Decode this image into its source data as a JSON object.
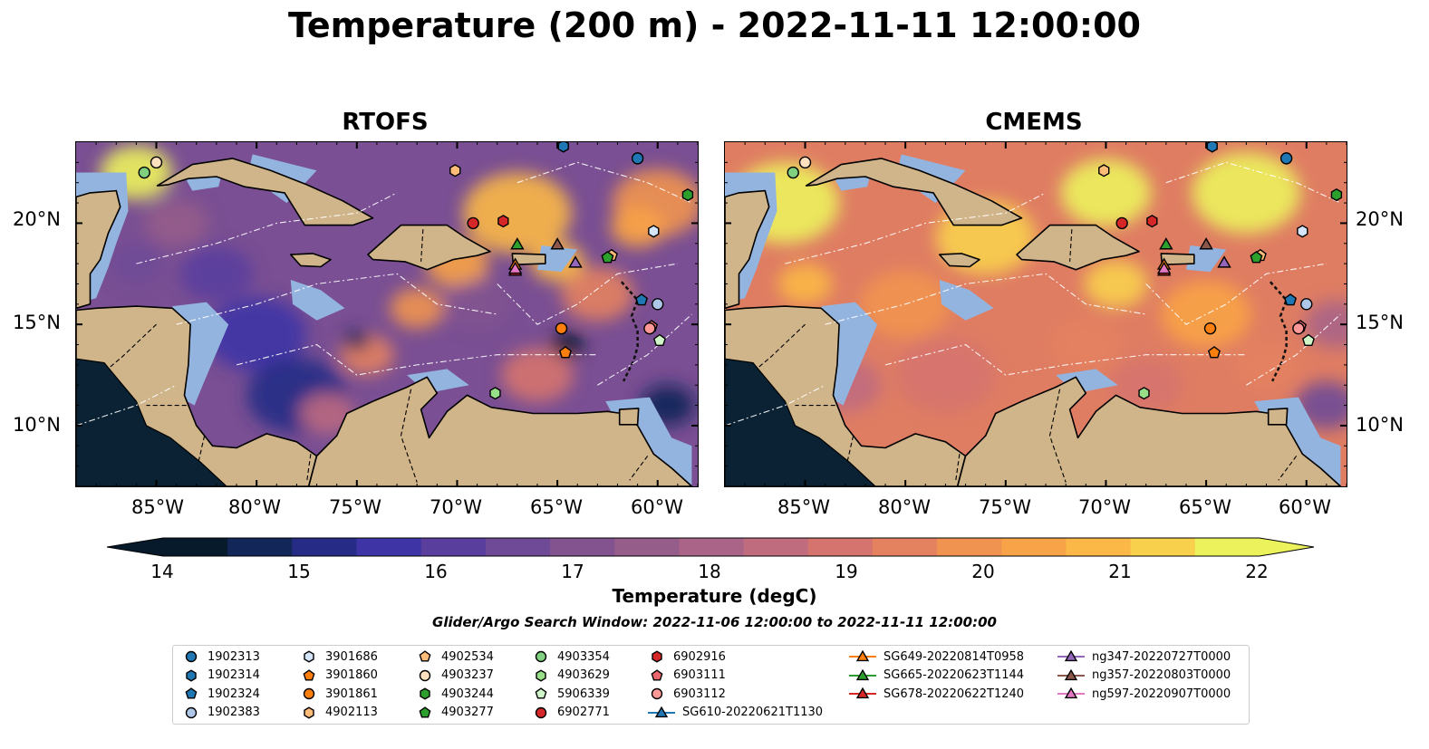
{
  "title": "Temperature (200 m) - 2022-11-11 12:00:00",
  "panels": [
    {
      "name": "RTOFS"
    },
    {
      "name": "CMEMS"
    }
  ],
  "map_extent": {
    "lon": [
      -89,
      -58
    ],
    "lat": [
      7,
      24
    ]
  },
  "lon_ticks": [
    "85°W",
    "80°W",
    "75°W",
    "70°W",
    "65°W",
    "60°W"
  ],
  "lat_ticks": [
    "20°N",
    "15°N",
    "10°N"
  ],
  "colorbar": {
    "label": "Temperature (degC)",
    "ticks": [
      "14",
      "15",
      "16",
      "17",
      "18",
      "19",
      "20",
      "21",
      "22"
    ],
    "range": [
      14,
      22
    ],
    "colors": [
      "#061a2c",
      "#13265a",
      "#262c86",
      "#3f34a6",
      "#5a3e9e",
      "#6f4a97",
      "#82538f",
      "#955d8a",
      "#a96487",
      "#c06c7f",
      "#d5746e",
      "#e4825f",
      "#f19350",
      "#f8a347",
      "#fbb847",
      "#f8d04c",
      "#ecf25c"
    ]
  },
  "search_window": "Glider/Argo Search Window: 2022-11-06 12:00:00 to 2022-11-11 12:00:00",
  "legend": [
    {
      "label": "1902313",
      "shape": "circle",
      "color": "#1f77b4"
    },
    {
      "label": "1902314",
      "shape": "hexagon",
      "color": "#1f77b4"
    },
    {
      "label": "1902324",
      "shape": "pentagon",
      "color": "#1f77b4"
    },
    {
      "label": "1902383",
      "shape": "circle",
      "color": "#aec7e8"
    },
    {
      "label": "3901686",
      "shape": "hexagon",
      "color": "#d6e6fa"
    },
    {
      "label": "3901860",
      "shape": "pentagon",
      "color": "#ff7f0e"
    },
    {
      "label": "3901861",
      "shape": "circle",
      "color": "#ff7f0e"
    },
    {
      "label": "4902113",
      "shape": "hexagon",
      "color": "#ffbb78"
    },
    {
      "label": "4902534",
      "shape": "pentagon",
      "color": "#ffbb78"
    },
    {
      "label": "4903237",
      "shape": "circle",
      "color": "#ffe0bf"
    },
    {
      "label": "4903244",
      "shape": "hexagon",
      "color": "#2ca02c"
    },
    {
      "label": "4903277",
      "shape": "pentagon",
      "color": "#2ca02c"
    },
    {
      "label": "4903354",
      "shape": "circle",
      "color": "#7fd17f"
    },
    {
      "label": "4903629",
      "shape": "hexagon",
      "color": "#98df8a"
    },
    {
      "label": "5906339",
      "shape": "pentagon",
      "color": "#d0f5c8"
    },
    {
      "label": "6902771",
      "shape": "circle",
      "color": "#d62728"
    },
    {
      "label": "6902916",
      "shape": "hexagon",
      "color": "#d62728"
    },
    {
      "label": "6903111",
      "shape": "pentagon",
      "color": "#e9676b"
    },
    {
      "label": "6903112",
      "shape": "circle",
      "color": "#ff9896"
    },
    {
      "label": "SG610-20220621T1130",
      "shape": "triangle-line",
      "color": "#1f77b4"
    },
    {
      "label": "SG649-20220814T0958",
      "shape": "triangle-line",
      "color": "#ff7f0e"
    },
    {
      "label": "SG665-20220623T1144",
      "shape": "triangle-line",
      "color": "#2ca02c"
    },
    {
      "label": "SG678-20220622T1240",
      "shape": "triangle-line",
      "color": "#d62728"
    },
    {
      "label": "ng347-20220727T0000",
      "shape": "triangle-line",
      "color": "#9467bd"
    },
    {
      "label": "ng357-20220803T0000",
      "shape": "triangle-line",
      "color": "#8c564b"
    },
    {
      "label": "ng597-20220907T0000",
      "shape": "triangle-line",
      "color": "#e377c2"
    }
  ],
  "platforms": [
    {
      "id": "1902313",
      "lon": -61.0,
      "lat": 23.2
    },
    {
      "id": "1902314",
      "lon": -64.7,
      "lat": 23.8
    },
    {
      "id": "1902324",
      "lon": -60.8,
      "lat": 16.2
    },
    {
      "id": "1902383",
      "lon": -60.0,
      "lat": 16.0
    },
    {
      "id": "3901686",
      "lon": -60.2,
      "lat": 19.6
    },
    {
      "id": "3901860",
      "lon": -64.6,
      "lat": 13.6
    },
    {
      "id": "3901861",
      "lon": -64.8,
      "lat": 14.8
    },
    {
      "id": "4902113",
      "lon": -70.1,
      "lat": 22.6
    },
    {
      "id": "4902534",
      "lon": -62.3,
      "lat": 18.4
    },
    {
      "id": "4903237",
      "lon": -85.0,
      "lat": 23.0
    },
    {
      "id": "4903244",
      "lon": -58.5,
      "lat": 21.4
    },
    {
      "id": "4903277",
      "lon": -62.5,
      "lat": 18.3
    },
    {
      "id": "4903354",
      "lon": -85.6,
      "lat": 22.5
    },
    {
      "id": "4903629",
      "lon": -68.1,
      "lat": 11.6
    },
    {
      "id": "5906339",
      "lon": -59.9,
      "lat": 14.2
    },
    {
      "id": "6902771",
      "lon": -69.2,
      "lat": 20.0
    },
    {
      "id": "6902916",
      "lon": -67.7,
      "lat": 20.1
    },
    {
      "id": "6903111",
      "lon": -60.3,
      "lat": 14.9
    },
    {
      "id": "6903112",
      "lon": -60.4,
      "lat": 14.8
    },
    {
      "id": "SG649-20220814T0958",
      "lon": -67.1,
      "lat": 17.9
    },
    {
      "id": "SG665-20220623T1144",
      "lon": -67.0,
      "lat": 18.9
    },
    {
      "id": "SG678-20220622T1240",
      "lon": -67.1,
      "lat": 17.6
    },
    {
      "id": "ng347-20220727T0000",
      "lon": -64.1,
      "lat": 18.0
    },
    {
      "id": "ng357-20220803T0000",
      "lon": -65.0,
      "lat": 18.9
    },
    {
      "id": "ng597-20220907T0000",
      "lon": -67.1,
      "lat": 17.7
    }
  ]
}
